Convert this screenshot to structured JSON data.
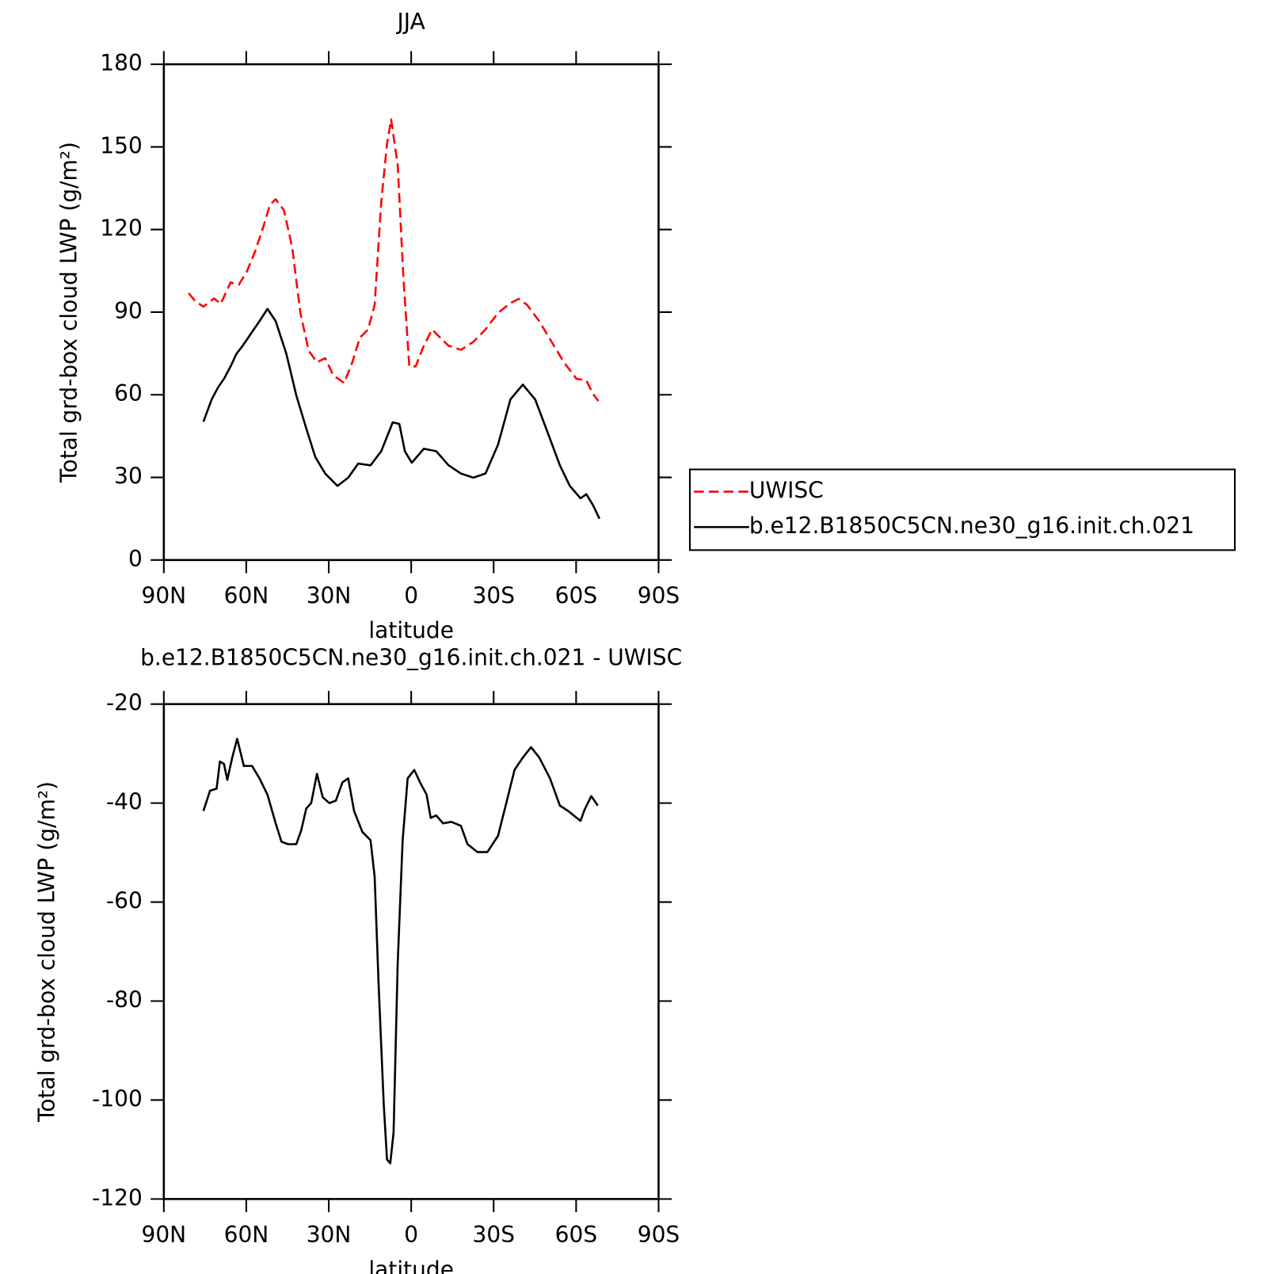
{
  "chart_data": [
    {
      "type": "line",
      "title": "JJA",
      "xlabel": "latitude",
      "ylabel": "Total grd-box cloud LWP (g/m²)",
      "xlim": [
        90,
        -90
      ],
      "xticks": [
        {
          "value": 90,
          "label": "90N"
        },
        {
          "value": 60,
          "label": "60N"
        },
        {
          "value": 30,
          "label": "30N"
        },
        0,
        {
          "value": -30,
          "label": "30S"
        },
        {
          "value": -60,
          "label": "60S"
        },
        {
          "value": -90,
          "label": "90S"
        }
      ],
      "ylim": [
        0,
        180
      ],
      "yticks": [
        0,
        30,
        60,
        90,
        120,
        150,
        180
      ],
      "legend": "right",
      "series": [
        {
          "name": "UWISC",
          "color": "#ff0000",
          "dash": true,
          "x": [
            81,
            78.6,
            75.6,
            71.7,
            69.3,
            65.7,
            62.7,
            59.8,
            56.8,
            53.8,
            51.4,
            49.3,
            46.3,
            43.3,
            40.3,
            37.3,
            34.3,
            31.3,
            28.3,
            24.4,
            21.4,
            18.7,
            15.7,
            13.3,
            10.9,
            8.8,
            7.3,
            4.9,
            2.8,
            0.7,
            -1.6,
            -4.6,
            -7.6,
            -10.6,
            -13.6,
            -18.1,
            -22.6,
            -27,
            -31.6,
            -36.1,
            -39.1,
            -42.1,
            -46.6,
            -51.1,
            -55.6,
            -60.1,
            -63.7,
            -66.1,
            -68.1
          ],
          "values": [
            96.9,
            94,
            92,
            95,
            93,
            100.8,
            100,
            104.7,
            112,
            121,
            129,
            131,
            127,
            113.6,
            89.7,
            76,
            71.8,
            73.3,
            67,
            64.3,
            71.8,
            80.7,
            83.7,
            92.7,
            130,
            151,
            160,
            143.5,
            101.7,
            70.3,
            70.3,
            77.8,
            83.7,
            80.7,
            77.8,
            76.3,
            79.2,
            83.7,
            89.7,
            93.3,
            94.8,
            92.7,
            86.7,
            79.2,
            71.8,
            65.8,
            65.2,
            60.4,
            57.7
          ]
        },
        {
          "name": "b.e12.B1850C5CN.ne30_g16.init.ch.021",
          "color": "#000000",
          "dash": false,
          "x": [
            75.6,
            72.6,
            70.2,
            68.1,
            65.7,
            63.6,
            61.3,
            58.3,
            55.2,
            52.3,
            49.3,
            45.4,
            41.8,
            38.2,
            34.9,
            31.3,
            26.8,
            22.9,
            19.3,
            14.8,
            10.9,
            6.7,
            4.3,
            2.3,
            -0.2,
            -4.6,
            -9.1,
            -13.6,
            -18.1,
            -22.6,
            -27,
            -31.6,
            -36.1,
            -40.6,
            -45.1,
            -49.6,
            -54.1,
            -57.7,
            -61.6,
            -63.7,
            -66.1,
            -68.5
          ],
          "values": [
            50.2,
            58.3,
            62.8,
            65.8,
            70.3,
            74.8,
            77.8,
            82.2,
            86.7,
            91.2,
            86.7,
            74.8,
            59.8,
            47.8,
            37.4,
            31.4,
            26.9,
            29.9,
            35,
            34.4,
            39.5,
            50,
            49.4,
            39.5,
            35.3,
            40.4,
            39.5,
            34.4,
            31.4,
            29.9,
            31.4,
            41.9,
            58.3,
            63.7,
            58.3,
            46.4,
            34.4,
            26.9,
            22.4,
            23.9,
            20,
            15
          ]
        }
      ]
    },
    {
      "type": "line",
      "title": "b.e12.B1850C5CN.ne30_g16.init.ch.021  -  UWISC",
      "xlabel": "latitude",
      "ylabel": "Total grd-box cloud LWP (g/m²)",
      "xlim": [
        90,
        -90
      ],
      "xticks": [
        {
          "value": 90,
          "label": "90N"
        },
        {
          "value": 60,
          "label": "60N"
        },
        {
          "value": 30,
          "label": "30N"
        },
        0,
        {
          "value": -30,
          "label": "30S"
        },
        {
          "value": -60,
          "label": "60S"
        },
        {
          "value": -90,
          "label": "90S"
        }
      ],
      "ylim": [
        -120,
        -20
      ],
      "yticks": [
        -120,
        -100,
        -80,
        -60,
        -40,
        -20
      ],
      "series": [
        {
          "color": "#000000",
          "dash": false,
          "x": [
            75.6,
            73.2,
            70.8,
            69.6,
            68.1,
            66.9,
            65.1,
            63.3,
            60.9,
            57.9,
            55.2,
            52.3,
            49.3,
            47.2,
            44.8,
            41.8,
            40,
            38.2,
            36.4,
            34.3,
            32.2,
            29.8,
            27.4,
            25,
            22.9,
            20.8,
            17.8,
            14.8,
            13.3,
            11.8,
            10,
            8.8,
            7.6,
            6.4,
            4.9,
            3.1,
            1.3,
            -1.1,
            -3.2,
            -5.6,
            -7.1,
            -9.1,
            -11.6,
            -14.6,
            -18.1,
            -20.5,
            -24.1,
            -27.7,
            -31.6,
            -34.6,
            -37.6,
            -40.6,
            -43.6,
            -46.6,
            -50.5,
            -54.1,
            -57.1,
            -61.6,
            -63.1,
            -65.5,
            -67.9
          ],
          "values": [
            -41.6,
            -37.5,
            -37.1,
            -31.6,
            -32.1,
            -35.3,
            -30.8,
            -27,
            -32.5,
            -32.5,
            -35,
            -38.3,
            -44.1,
            -47.8,
            -48.3,
            -48.3,
            -45.5,
            -41.1,
            -40,
            -34.1,
            -38.8,
            -40,
            -39.5,
            -35.8,
            -35,
            -41.6,
            -45.8,
            -47.5,
            -54.9,
            -77.4,
            -100.7,
            -112,
            -112.8,
            -106.5,
            -72.4,
            -47.5,
            -35,
            -33.3,
            -35.8,
            -38.3,
            -43,
            -42.5,
            -44.1,
            -43.8,
            -44.6,
            -48.3,
            -49.9,
            -49.9,
            -46.6,
            -40,
            -33.3,
            -30.8,
            -28.7,
            -30.8,
            -35,
            -40.5,
            -41.6,
            -43.6,
            -41.3,
            -38.6,
            -40.5
          ]
        }
      ]
    }
  ]
}
